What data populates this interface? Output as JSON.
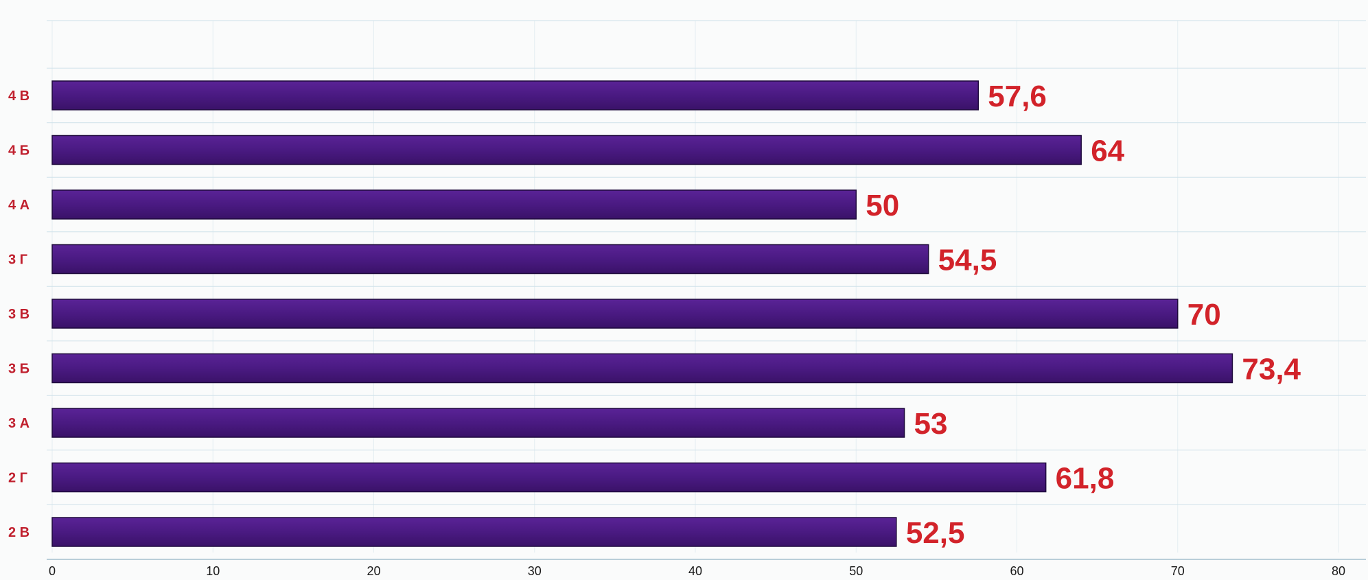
{
  "chart_data": {
    "type": "bar",
    "orientation": "horizontal",
    "categories": [
      "4 В",
      "4 Б",
      "4 А",
      "3 Г",
      "3 В",
      "3 Б",
      "3 А",
      "2 Г",
      "2 В"
    ],
    "values": [
      57.6,
      64,
      50,
      54.5,
      70,
      73.4,
      53,
      61.8,
      52.5
    ],
    "value_labels": [
      "57,6",
      "64",
      "50",
      "54,5",
      "70",
      "73,4",
      "53",
      "61,8",
      "52,5"
    ],
    "x_ticks": [
      "0",
      "10",
      "20",
      "30",
      "40",
      "50",
      "60",
      "70",
      "80"
    ],
    "xlim": [
      0,
      80
    ],
    "title": "",
    "xlabel": "",
    "ylabel": "",
    "grid": true,
    "legend": "none",
    "colors": {
      "bar_fill": "#4a1a82",
      "bar_edge": "#1e0a3c",
      "value_label": "#d2232a",
      "category_label": "#c0202e"
    }
  }
}
